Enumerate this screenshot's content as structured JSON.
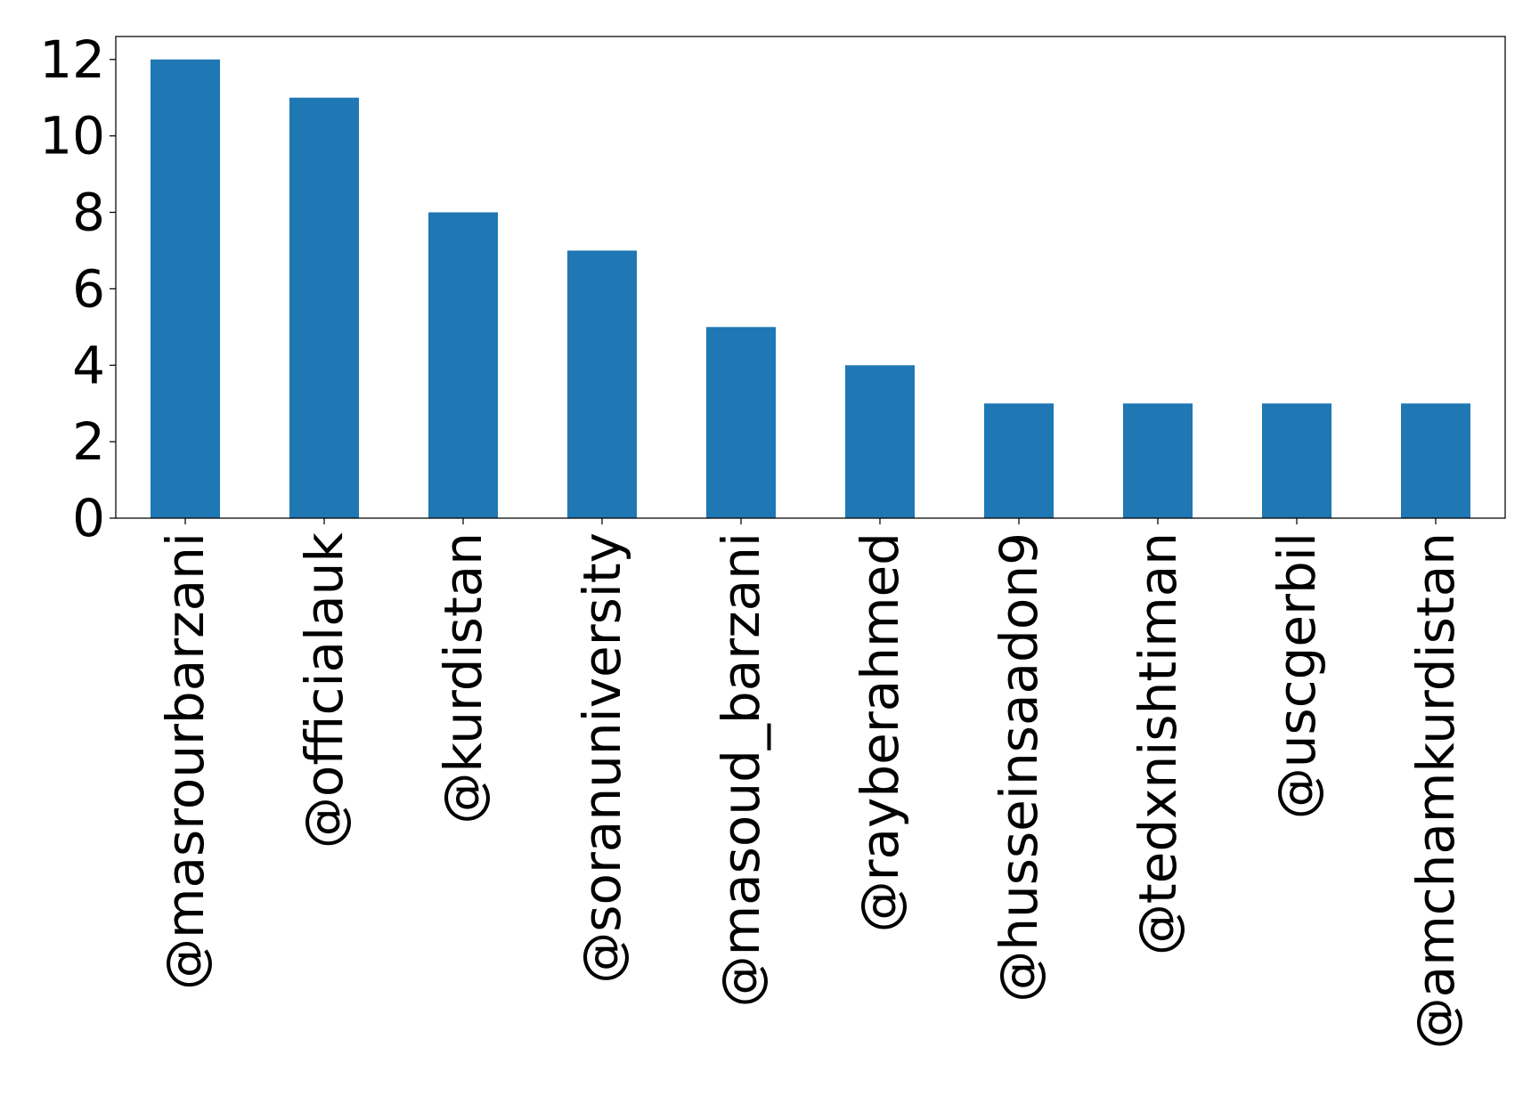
{
  "chart_data": {
    "type": "bar",
    "title": "",
    "xlabel": "",
    "ylabel": "",
    "categories": [
      "@masrourbarzani",
      "@officialauk",
      "@kurdistan",
      "@soranuniversity",
      "@masoud_barzani",
      "@rayberahmed",
      "@husseinsaadon9",
      "@tedxnishtiman",
      "@uscgerbil",
      "@amchamkurdistan"
    ],
    "values": [
      12,
      11,
      8,
      7,
      5,
      4,
      3,
      3,
      3,
      3
    ],
    "ylim": [
      0,
      12.6
    ],
    "yticks": [
      0,
      2,
      4,
      6,
      8,
      10,
      12
    ],
    "grid": false,
    "legend": "none",
    "bar_color": "#1f77b4"
  }
}
